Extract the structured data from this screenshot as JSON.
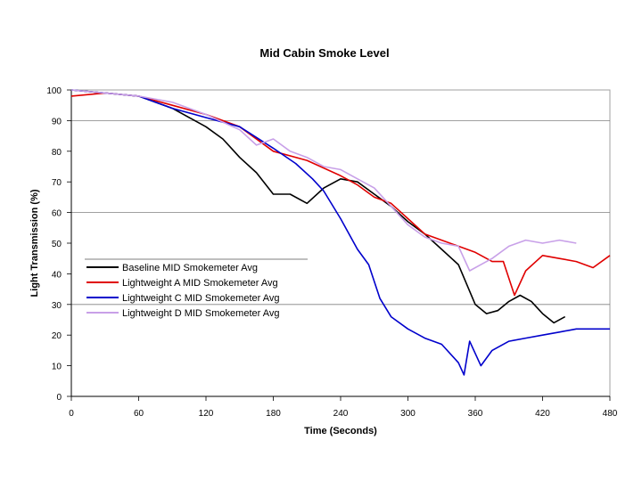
{
  "chart_data": {
    "type": "line",
    "title": "Mid Cabin Smoke Level",
    "xlabel": "Time (Seconds)",
    "ylabel": "Light Transmission (%)",
    "xlim": [
      0,
      480
    ],
    "ylim": [
      0,
      100
    ],
    "x_ticks": [
      "0",
      "60",
      "120",
      "180",
      "240",
      "300",
      "360",
      "420",
      "480"
    ],
    "y_ticks": [
      "0",
      "10",
      "20",
      "30",
      "40",
      "50",
      "60",
      "70",
      "80",
      "90",
      "100"
    ],
    "grid": "horizontal",
    "legend_position": "center-left",
    "series": [
      {
        "name": "Baseline MID Smokemeter Avg",
        "color": "#000000",
        "x": [
          0,
          30,
          60,
          90,
          120,
          135,
          150,
          165,
          180,
          195,
          210,
          225,
          240,
          255,
          270,
          285,
          300,
          315,
          330,
          345,
          360,
          370,
          380,
          390,
          400,
          410,
          420,
          430,
          440
        ],
        "y": [
          100,
          99,
          98,
          94,
          88,
          84,
          78,
          73,
          66,
          66,
          63,
          68,
          71,
          70,
          66,
          62,
          57,
          53,
          48,
          43,
          30,
          27,
          28,
          31,
          33,
          31,
          27,
          24,
          26
        ]
      },
      {
        "name": "Lightweight A MID Smokemeter Avg",
        "color": "#e00000",
        "x": [
          0,
          30,
          60,
          90,
          120,
          150,
          180,
          210,
          240,
          255,
          270,
          285,
          300,
          315,
          330,
          345,
          360,
          375,
          385,
          395,
          405,
          420,
          435,
          450,
          465,
          480
        ],
        "y": [
          98,
          99,
          98,
          95,
          92,
          88,
          80,
          77,
          72,
          69,
          65,
          63,
          58,
          53,
          51,
          49,
          47,
          44,
          44,
          33,
          41,
          46,
          45,
          44,
          42,
          46
        ]
      },
      {
        "name": "Lightweight C MID Smokemeter Avg",
        "color": "#0000cc",
        "x": [
          0,
          30,
          60,
          90,
          120,
          150,
          180,
          200,
          215,
          225,
          240,
          255,
          265,
          275,
          285,
          300,
          315,
          330,
          345,
          350,
          355,
          365,
          375,
          390,
          405,
          420,
          435,
          450,
          465,
          480
        ],
        "y": [
          100,
          99,
          98,
          94,
          91,
          88,
          81,
          76,
          71,
          67,
          58,
          48,
          43,
          32,
          26,
          22,
          19,
          17,
          11,
          7,
          18,
          10,
          15,
          18,
          19,
          20,
          21,
          22,
          22,
          22
        ]
      },
      {
        "name": "Lightweight D MID Smokemeter Avg",
        "color": "#c8a0e8",
        "x": [
          0,
          30,
          60,
          90,
          120,
          150,
          165,
          180,
          195,
          210,
          225,
          240,
          255,
          270,
          285,
          300,
          315,
          330,
          345,
          355,
          365,
          375,
          390,
          405,
          420,
          435,
          450
        ],
        "y": [
          100,
          99,
          98,
          96,
          92,
          87,
          82,
          84,
          80,
          78,
          75,
          74,
          71,
          68,
          62,
          56,
          52,
          50,
          49,
          41,
          43,
          45,
          49,
          51,
          50,
          51,
          50
        ]
      }
    ]
  }
}
